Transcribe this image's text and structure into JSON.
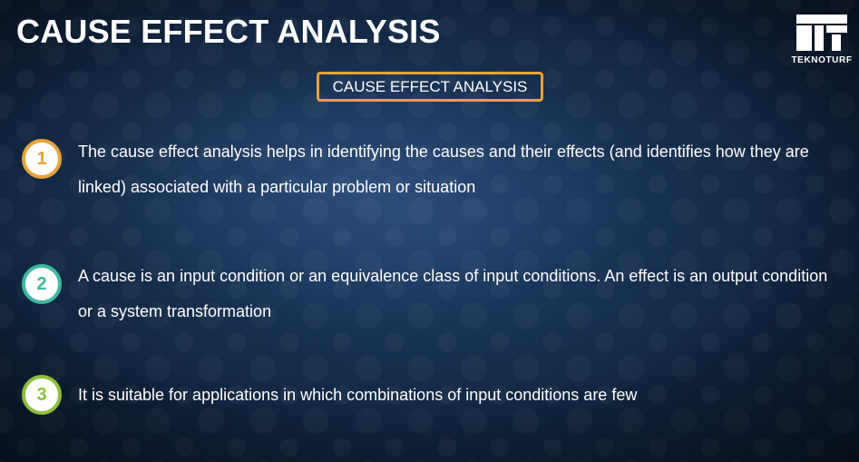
{
  "slide": {
    "title": "CAUSE EFFECT ANALYSIS",
    "subtitle": "CAUSE EFFECT ANALYSIS",
    "logo_text": "TEKNOTURF"
  },
  "colors": {
    "accent_orange": "#e8a33a",
    "accent_teal": "#3fb6a3",
    "accent_green": "#8cbf3c",
    "background": "#132a48"
  },
  "points": [
    {
      "number": "1",
      "text": "The cause effect analysis helps in identifying the causes and their effects (and identifies how they are linked) associated with a particular problem or situation"
    },
    {
      "number": "2",
      "text": "A cause is an input condition or an equivalence class of input conditions. An effect is an output condition or a system transformation"
    },
    {
      "number": "3",
      "text": "It is suitable for applications in which combinations of input conditions are few"
    }
  ]
}
